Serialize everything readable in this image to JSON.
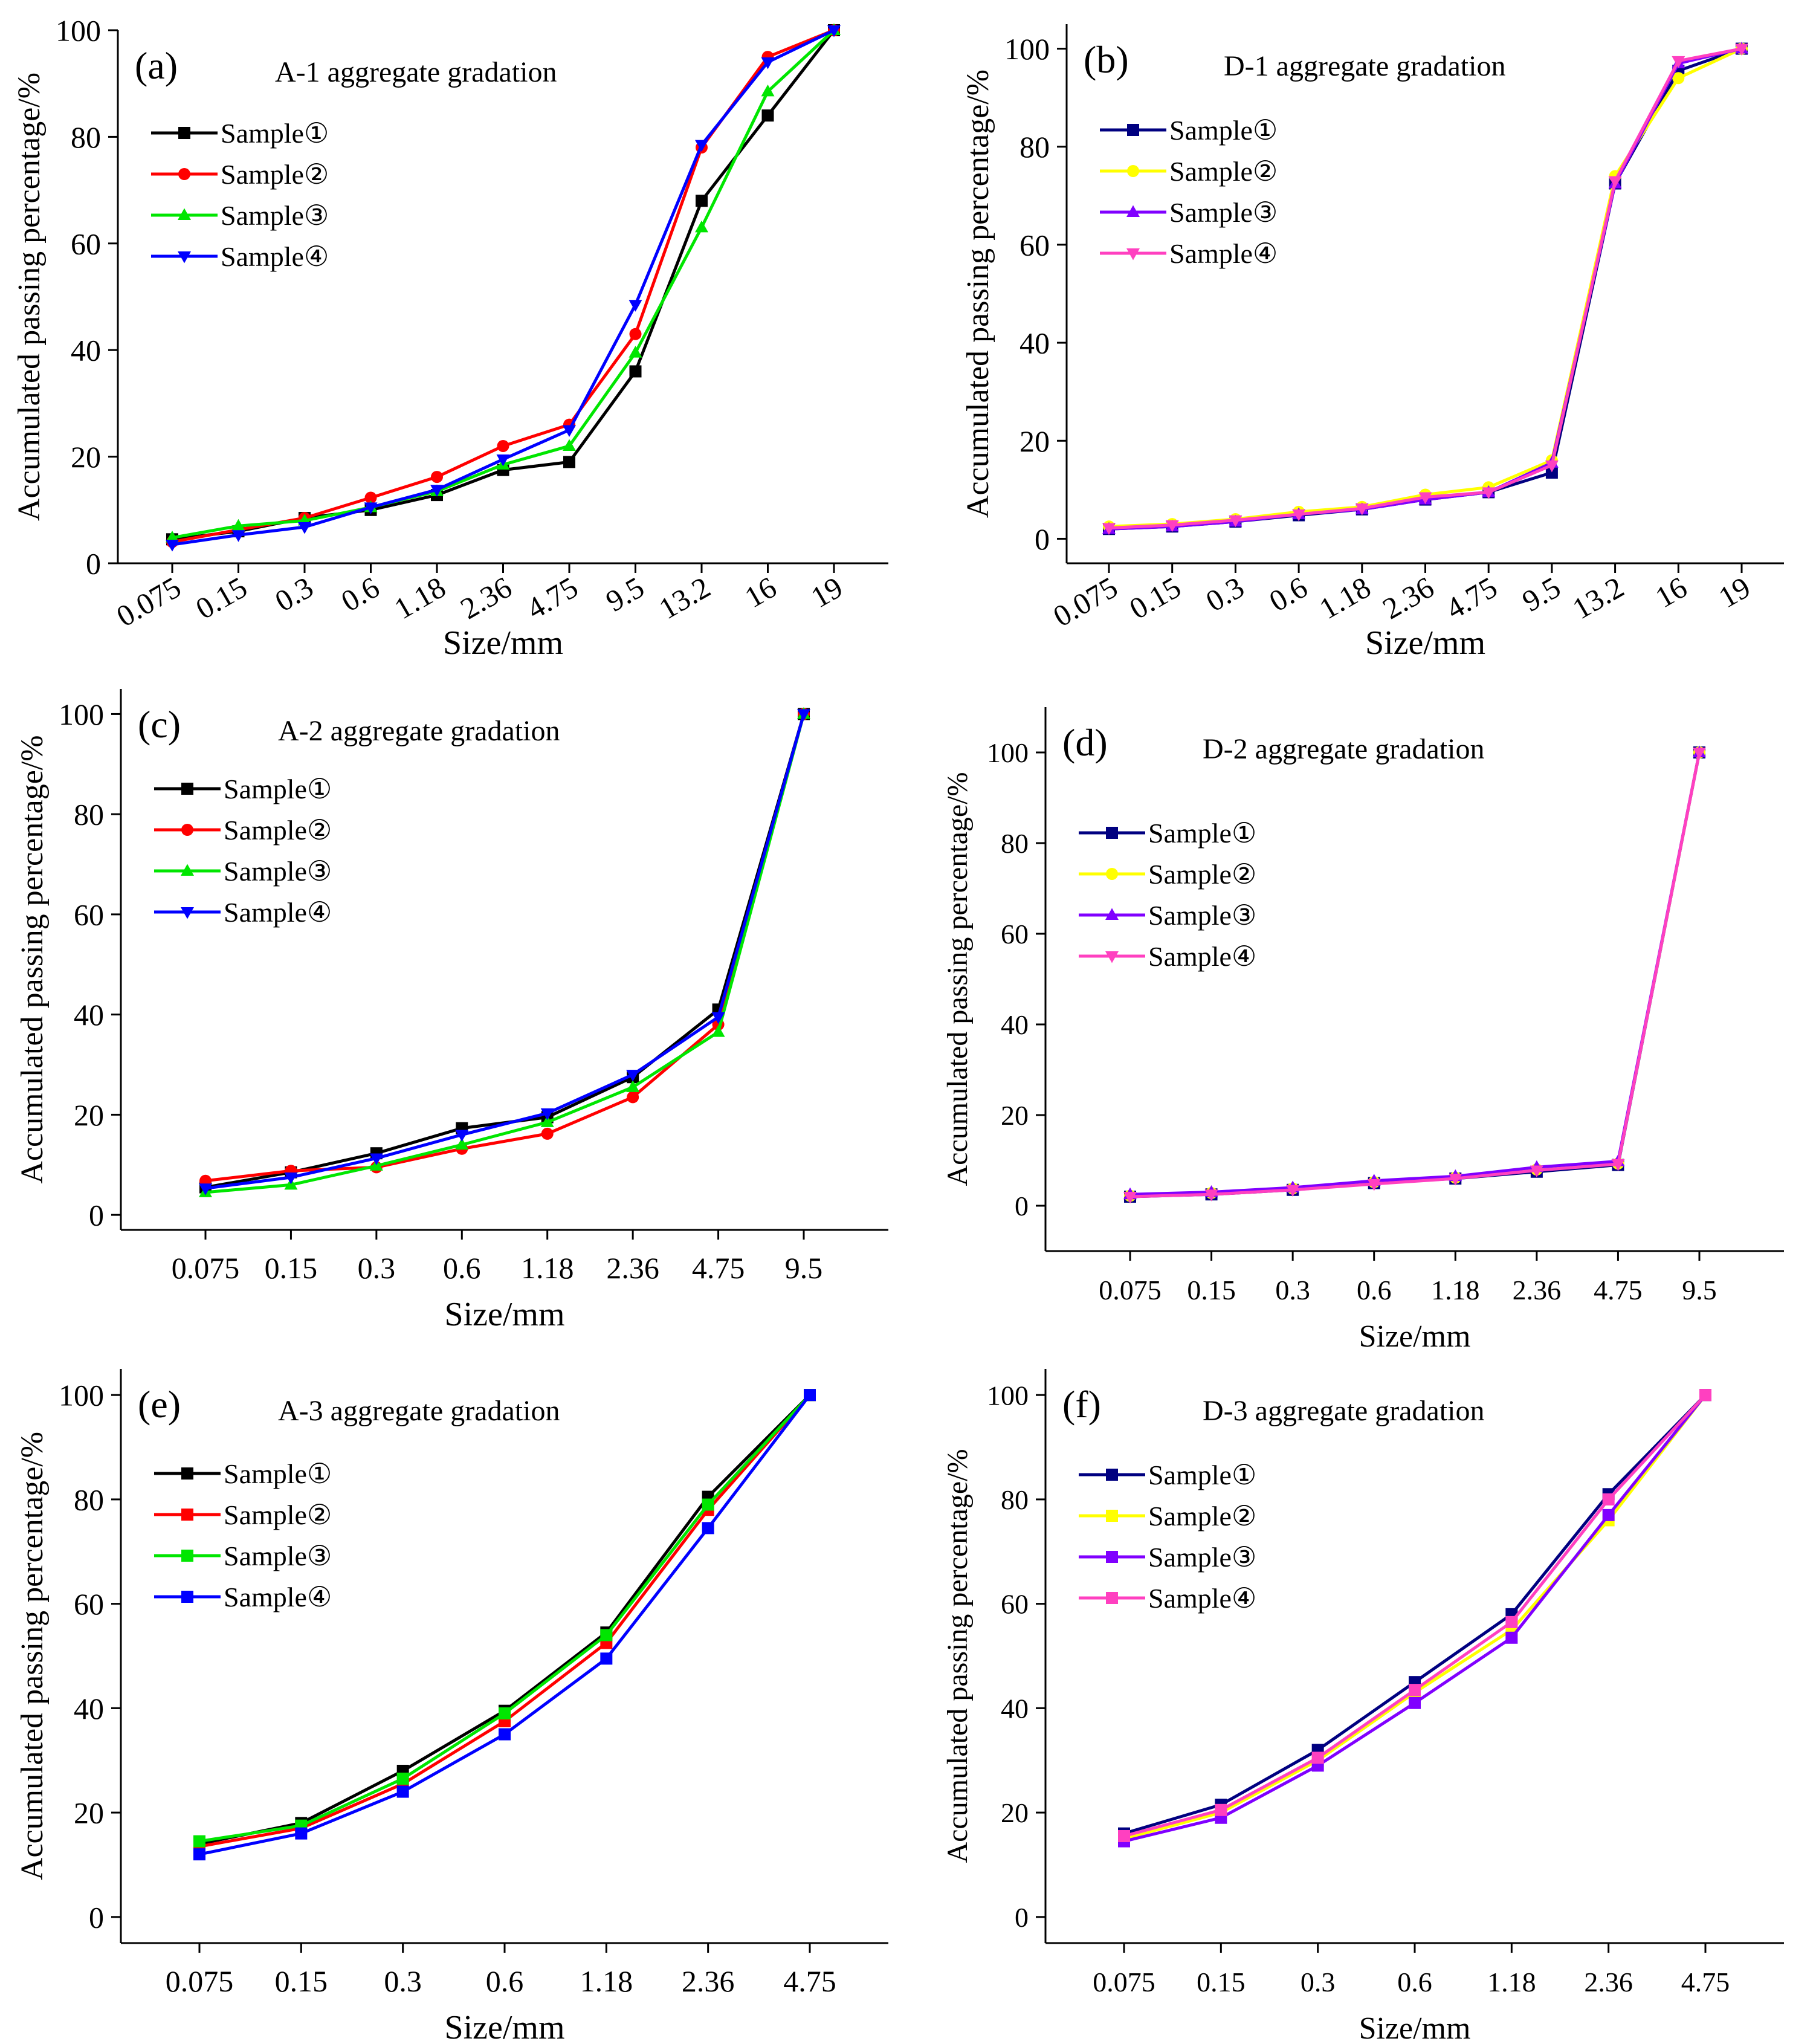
{
  "chart_data": [
    {
      "type": "line",
      "panel_label": "(a)",
      "title": "A-1 aggregate gradation",
      "xlabel": "Size/mm",
      "ylabel": "Accumulated passing percentage/%",
      "categories": [
        "0.075",
        "0.15",
        "0.3",
        "0.6",
        "1.18",
        "2.36",
        "4.75",
        "9.5",
        "13.2",
        "16",
        "19"
      ],
      "ylim": [
        0,
        100
      ],
      "yticks": [
        0,
        20,
        40,
        60,
        80,
        100
      ],
      "series": [
        {
          "name": "Sample①",
          "color": "#000000",
          "marker": "square",
          "values": [
            4.5,
            6.0,
            8.5,
            10,
            12.8,
            17.5,
            19,
            36,
            68,
            84,
            100
          ]
        },
        {
          "name": "Sample②",
          "color": "#ff0000",
          "marker": "circle",
          "values": [
            4.0,
            6.3,
            8.5,
            12.3,
            16.2,
            22,
            26,
            43,
            78,
            95,
            100
          ]
        },
        {
          "name": "Sample③",
          "color": "#00e600",
          "marker": "triangle-up",
          "values": [
            4.8,
            7.0,
            8.0,
            10.5,
            13.5,
            18.5,
            22,
            39.5,
            63,
            88.5,
            100
          ]
        },
        {
          "name": "Sample④",
          "color": "#0000ff",
          "marker": "triangle-down",
          "values": [
            3.5,
            5.3,
            6.8,
            10.5,
            13.8,
            19.5,
            25,
            48.5,
            78.5,
            94,
            100
          ]
        }
      ]
    },
    {
      "type": "line",
      "panel_label": "(b)",
      "title": "D-1 aggregate gradation",
      "xlabel": "Size/mm",
      "ylabel": "Accumulated passing percentage/%",
      "categories": [
        "0.075",
        "0.15",
        "0.3",
        "0.6",
        "1.18",
        "2.36",
        "4.75",
        "9.5",
        "13.2",
        "16",
        "19"
      ],
      "ylim": [
        -5,
        105
      ],
      "yticks": [
        0,
        20,
        40,
        60,
        80,
        100
      ],
      "series": [
        {
          "name": "Sample①",
          "color": "#000080",
          "marker": "square",
          "values": [
            2.0,
            2.5,
            3.5,
            4.8,
            6.0,
            8.0,
            9.5,
            13.5,
            72.5,
            95.5,
            100
          ]
        },
        {
          "name": "Sample②",
          "color": "#ffff00",
          "marker": "circle",
          "values": [
            2.5,
            3.0,
            4.0,
            5.5,
            6.5,
            9.0,
            10.5,
            16.0,
            74,
            94,
            100
          ]
        },
        {
          "name": "Sample③",
          "color": "#8000ff",
          "marker": "triangle-up",
          "values": [
            2.0,
            2.5,
            3.5,
            5.0,
            6.0,
            8.0,
            9.5,
            15.5,
            72.5,
            97,
            100
          ]
        },
        {
          "name": "Sample④",
          "color": "#ff40c0",
          "marker": "triangle-down",
          "values": [
            2.2,
            2.8,
            3.8,
            5.0,
            6.2,
            8.5,
            9.5,
            15.0,
            73,
            97.5,
            100
          ]
        }
      ]
    },
    {
      "type": "line",
      "panel_label": "(c)",
      "title": "A-2 aggregate gradation",
      "xlabel": "Size/mm",
      "ylabel": "Accumulated passing percentage/%",
      "categories": [
        "0.075",
        "0.15",
        "0.3",
        "0.6",
        "1.18",
        "2.36",
        "4.75",
        "9.5"
      ],
      "ylim": [
        -3,
        105
      ],
      "yticks": [
        0,
        20,
        40,
        60,
        80,
        100
      ],
      "series": [
        {
          "name": "Sample①",
          "color": "#000000",
          "marker": "square",
          "values": [
            5.5,
            8.5,
            12.3,
            17.3,
            19.5,
            27.5,
            41,
            100
          ]
        },
        {
          "name": "Sample②",
          "color": "#ff0000",
          "marker": "circle",
          "values": [
            6.8,
            8.8,
            9.5,
            13.2,
            16.2,
            23.5,
            38,
            100
          ]
        },
        {
          "name": "Sample③",
          "color": "#00e600",
          "marker": "triangle-up",
          "values": [
            4.5,
            6.0,
            9.8,
            14.0,
            18.5,
            25.5,
            36.5,
            100
          ]
        },
        {
          "name": "Sample④",
          "color": "#0000ff",
          "marker": "triangle-down",
          "values": [
            5.3,
            7.5,
            11.3,
            16.0,
            20.3,
            28.0,
            39.5,
            100
          ]
        }
      ]
    },
    {
      "type": "line",
      "panel_label": "(d)",
      "title": "D-2 aggregate gradation",
      "xlabel": "Size/mm",
      "ylabel": "Accumulated passing percentage/%",
      "categories": [
        "0.075",
        "0.15",
        "0.3",
        "0.6",
        "1.18",
        "2.36",
        "4.75",
        "9.5"
      ],
      "ylim": [
        -10,
        110
      ],
      "yticks": [
        0,
        20,
        40,
        60,
        80,
        100
      ],
      "series": [
        {
          "name": "Sample①",
          "color": "#000080",
          "marker": "square",
          "values": [
            2.0,
            2.5,
            3.5,
            5.0,
            6.0,
            7.5,
            9.0,
            100
          ]
        },
        {
          "name": "Sample②",
          "color": "#ffff00",
          "marker": "circle",
          "values": [
            2.2,
            2.8,
            3.8,
            5.2,
            6.2,
            8.0,
            9.3,
            100
          ]
        },
        {
          "name": "Sample③",
          "color": "#8000ff",
          "marker": "triangle-up",
          "values": [
            2.5,
            3.0,
            4.0,
            5.5,
            6.5,
            8.5,
            9.8,
            100
          ]
        },
        {
          "name": "Sample④",
          "color": "#ff40c0",
          "marker": "triangle-down",
          "values": [
            2.0,
            2.5,
            3.5,
            4.8,
            6.0,
            7.8,
            9.2,
            100
          ]
        }
      ]
    },
    {
      "type": "line",
      "panel_label": "(e)",
      "title": "A-3 aggregate gradation",
      "xlabel": "Size/mm",
      "ylabel": "Accumulated passing percentage/%",
      "categories": [
        "0.075",
        "0.15",
        "0.3",
        "0.6",
        "1.18",
        "2.36",
        "4.75"
      ],
      "ylim": [
        -5,
        105
      ],
      "yticks": [
        0,
        20,
        40,
        60,
        80,
        100
      ],
      "series": [
        {
          "name": "Sample①",
          "color": "#000000",
          "marker": "square",
          "values": [
            14.0,
            18.0,
            28.0,
            39.5,
            54.5,
            80.5,
            100
          ]
        },
        {
          "name": "Sample②",
          "color": "#ff0000",
          "marker": "square",
          "values": [
            13.5,
            17.0,
            25.5,
            37.5,
            52.5,
            78.0,
            100
          ]
        },
        {
          "name": "Sample③",
          "color": "#00e600",
          "marker": "square",
          "values": [
            14.5,
            17.5,
            26.5,
            39.0,
            54.0,
            79.0,
            100
          ]
        },
        {
          "name": "Sample④",
          "color": "#0000ff",
          "marker": "square",
          "values": [
            12.0,
            16.0,
            24.0,
            35.0,
            49.5,
            74.5,
            100
          ]
        }
      ]
    },
    {
      "type": "line",
      "panel_label": "(f)",
      "title": "D-3 aggregate gradation",
      "xlabel": "Size/mm",
      "ylabel": "Accumulated passing percentage/%",
      "categories": [
        "0.075",
        "0.15",
        "0.3",
        "0.6",
        "1.18",
        "2.36",
        "4.75"
      ],
      "ylim": [
        -5,
        105
      ],
      "yticks": [
        0,
        20,
        40,
        60,
        80,
        100
      ],
      "series": [
        {
          "name": "Sample①",
          "color": "#000080",
          "marker": "square",
          "values": [
            16.0,
            21.5,
            32.0,
            45.0,
            58.0,
            81.0,
            100
          ]
        },
        {
          "name": "Sample②",
          "color": "#ffff00",
          "marker": "square",
          "values": [
            15.0,
            20.0,
            30.0,
            43.0,
            55.0,
            76.0,
            100
          ]
        },
        {
          "name": "Sample③",
          "color": "#8000ff",
          "marker": "square",
          "values": [
            14.5,
            19.0,
            29.0,
            41.0,
            53.5,
            77.0,
            100
          ]
        },
        {
          "name": "Sample④",
          "color": "#ff40c0",
          "marker": "square",
          "values": [
            15.5,
            20.5,
            30.5,
            43.5,
            56.5,
            80.0,
            100
          ]
        }
      ]
    }
  ]
}
